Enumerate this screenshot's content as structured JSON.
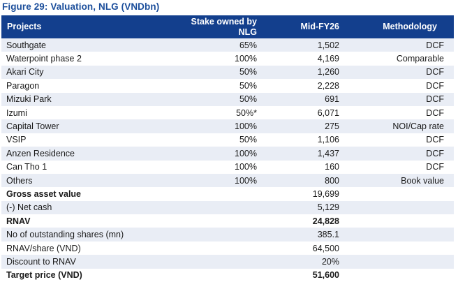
{
  "title": "Figure 29: Valuation, NLG (VNDbn)",
  "colors": {
    "title_blue": "#1b4e9b",
    "header_bg": "#133f8d",
    "header_text": "#ffffff",
    "row_stripe": "#e9edf5",
    "body_text": "#1a1a1a"
  },
  "table": {
    "headers": {
      "projects": "Projects",
      "stake": "Stake owned by\nNLG",
      "mid_fy26": "Mid-FY26",
      "methodology": "Methodology"
    },
    "rows": [
      {
        "project": "Southgate",
        "stake": "65%",
        "value": "1,502",
        "methodology": "DCF",
        "bold_label": false,
        "bold_value": false
      },
      {
        "project": "Waterpoint phase 2",
        "stake": "100%",
        "value": "4,169",
        "methodology": "Comparable",
        "bold_label": false,
        "bold_value": false
      },
      {
        "project": "Akari City",
        "stake": "50%",
        "value": "1,260",
        "methodology": "DCF",
        "bold_label": false,
        "bold_value": false
      },
      {
        "project": "Paragon",
        "stake": "50%",
        "value": "2,228",
        "methodology": "DCF",
        "bold_label": false,
        "bold_value": false
      },
      {
        "project": "Mizuki Park",
        "stake": "50%",
        "value": "691",
        "methodology": "DCF",
        "bold_label": false,
        "bold_value": false
      },
      {
        "project": "Izumi",
        "stake": "50%*",
        "value": "6,071",
        "methodology": "DCF",
        "bold_label": false,
        "bold_value": false
      },
      {
        "project": "Capital Tower",
        "stake": "100%",
        "value": "275",
        "methodology": "NOI/Cap rate",
        "bold_label": false,
        "bold_value": false
      },
      {
        "project": "VSIP",
        "stake": "50%",
        "value": "1,106",
        "methodology": "DCF",
        "bold_label": false,
        "bold_value": false
      },
      {
        "project": "Anzen Residence",
        "stake": "100%",
        "value": "1,437",
        "methodology": "DCF",
        "bold_label": false,
        "bold_value": false
      },
      {
        "project": "Can Tho 1",
        "stake": "100%",
        "value": "160",
        "methodology": "DCF",
        "bold_label": false,
        "bold_value": false
      },
      {
        "project": "Others",
        "stake": "100%",
        "value": "800",
        "methodology": "Book value",
        "bold_label": false,
        "bold_value": false
      },
      {
        "project": "Gross asset value",
        "stake": "",
        "value": "19,699",
        "methodology": "",
        "bold_label": true,
        "bold_value": false
      },
      {
        "project": "(-) Net cash",
        "stake": "",
        "value": "5,129",
        "methodology": "",
        "bold_label": false,
        "bold_value": false
      },
      {
        "project": "RNAV",
        "stake": "",
        "value": "24,828",
        "methodology": "",
        "bold_label": true,
        "bold_value": true
      },
      {
        "project": "No of outstanding shares (mn)",
        "stake": "",
        "value": "385.1",
        "methodology": "",
        "bold_label": false,
        "bold_value": false
      },
      {
        "project": "RNAV/share (VND)",
        "stake": "",
        "value": "64,500",
        "methodology": "",
        "bold_label": false,
        "bold_value": false
      },
      {
        "project": "Discount to RNAV",
        "stake": "",
        "value": "20%",
        "methodology": "",
        "bold_label": false,
        "bold_value": false
      },
      {
        "project": "Target price (VND)",
        "stake": "",
        "value": "51,600",
        "methodology": "",
        "bold_label": true,
        "bold_value": true
      }
    ]
  }
}
